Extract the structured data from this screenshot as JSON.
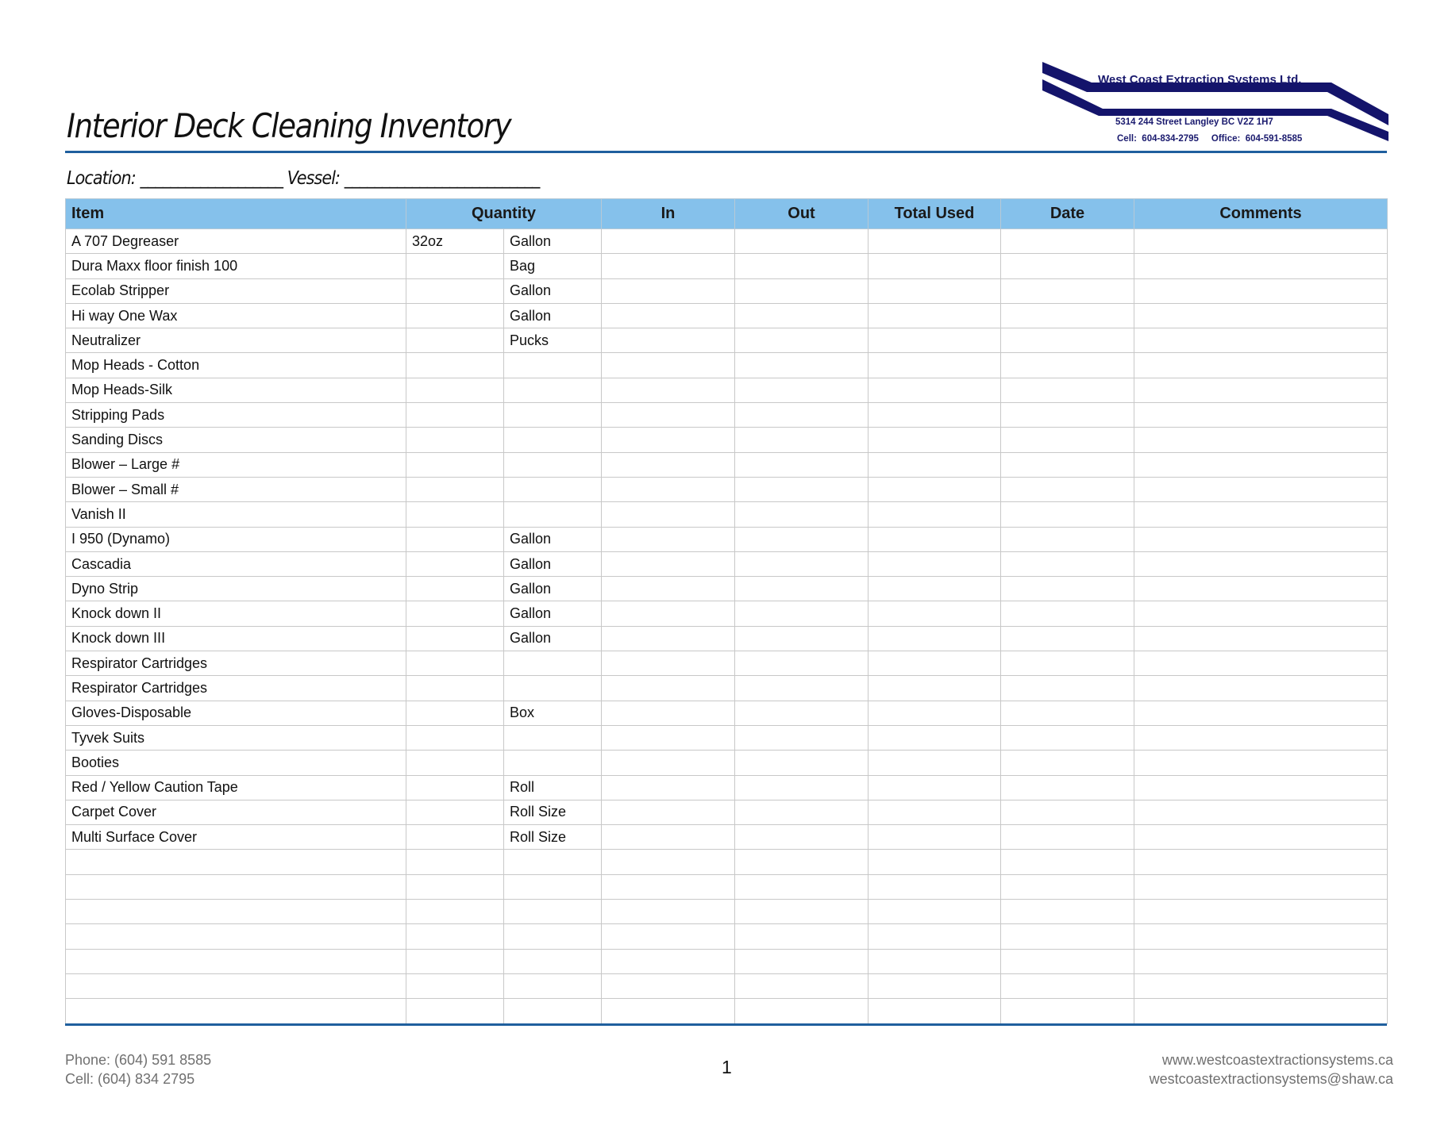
{
  "header": {
    "title": "Interior Deck Cleaning Inventory",
    "location_label": "Location: ___________________",
    "vessel_label": "Vessel: __________________________"
  },
  "logo": {
    "company": "West Coast Extraction Systems Ltd.",
    "address": "5314 244 Street  Langley  BC  V2Z 1H7",
    "phones": "Cell:  604-834-2795     Office:  604-591-8585",
    "color": "#14146b"
  },
  "table": {
    "columns": [
      "Item",
      "Quantity",
      "In",
      "Out",
      "Total Used",
      "Date",
      "Comments"
    ],
    "rows": [
      {
        "item": "A 707 Degreaser",
        "qty": "32oz",
        "unit": "Gallon"
      },
      {
        "item": "Dura Maxx floor finish 100",
        "qty": "",
        "unit": "Bag"
      },
      {
        "item": "Ecolab Stripper",
        "qty": "",
        "unit": "Gallon"
      },
      {
        "item": "Hi way One Wax",
        "qty": "",
        "unit": "Gallon"
      },
      {
        "item": "Neutralizer",
        "qty": "",
        "unit": "Pucks"
      },
      {
        "item": "Mop Heads - Cotton",
        "qty": "",
        "unit": ""
      },
      {
        "item": "Mop Heads-Silk",
        "qty": "",
        "unit": ""
      },
      {
        "item": "Stripping Pads",
        "qty": "",
        "unit": ""
      },
      {
        "item": "Sanding Discs",
        "qty": "",
        "unit": ""
      },
      {
        "item": "Blower – Large #",
        "qty": "",
        "unit": ""
      },
      {
        "item": "Blower – Small #",
        "qty": "",
        "unit": ""
      },
      {
        "item": "Vanish II",
        "qty": "",
        "unit": ""
      },
      {
        "item": "I 950 (Dynamo)",
        "qty": "",
        "unit": "Gallon"
      },
      {
        "item": "Cascadia",
        "qty": "",
        "unit": "Gallon"
      },
      {
        "item": "Dyno Strip",
        "qty": "",
        "unit": "Gallon"
      },
      {
        "item": "Knock down II",
        "qty": "",
        "unit": "Gallon"
      },
      {
        "item": "Knock down III",
        "qty": "",
        "unit": "Gallon"
      },
      {
        "item": "Respirator Cartridges",
        "qty": "",
        "unit": ""
      },
      {
        "item": "Respirator Cartridges",
        "qty": "",
        "unit": ""
      },
      {
        "item": "Gloves-Disposable",
        "qty": "",
        "unit": "Box"
      },
      {
        "item": "Tyvek Suits",
        "qty": "",
        "unit": ""
      },
      {
        "item": "Booties",
        "qty": "",
        "unit": ""
      },
      {
        "item": "Red / Yellow Caution Tape",
        "qty": "",
        "unit": "Roll"
      },
      {
        "item": "Carpet Cover",
        "qty": "",
        "unit": "Roll Size"
      },
      {
        "item": "Multi Surface Cover",
        "qty": "",
        "unit": "Roll Size"
      },
      {
        "item": "",
        "qty": "",
        "unit": ""
      },
      {
        "item": "",
        "qty": "",
        "unit": ""
      },
      {
        "item": "",
        "qty": "",
        "unit": ""
      },
      {
        "item": "",
        "qty": "",
        "unit": ""
      },
      {
        "item": "",
        "qty": "",
        "unit": ""
      },
      {
        "item": "",
        "qty": "",
        "unit": ""
      },
      {
        "item": "",
        "qty": "",
        "unit": ""
      }
    ],
    "header_color": "#85c1eb"
  },
  "footer": {
    "phone": "Phone: (604) 591 8585",
    "cell": "Cell: (604) 834 2795",
    "page": "1",
    "website": "www.westcoastextractionsystems.ca",
    "email": "westcoastextractionsystems@shaw.ca"
  }
}
